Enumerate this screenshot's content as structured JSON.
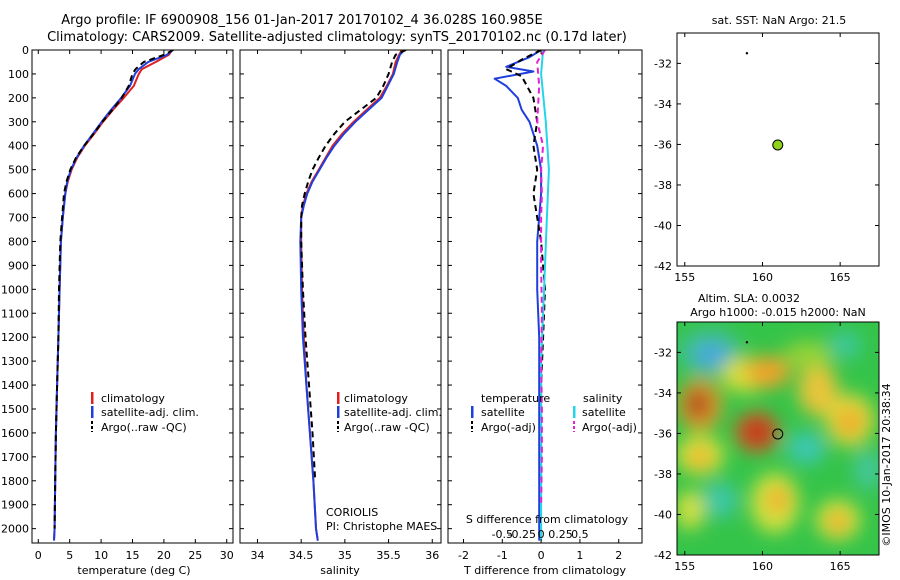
{
  "title_lines": [
    "Argo profile: IF 6900908_156 01-Jan-2017 20170102_4 36.028S 160.985E",
    "Climatology: CARS2009. Satellite-adjusted climatology: synTS_20170102.nc (0.17d later)"
  ],
  "depth_ticks": [
    0,
    100,
    200,
    300,
    400,
    500,
    600,
    700,
    800,
    900,
    1000,
    1100,
    1200,
    1300,
    1400,
    1500,
    1600,
    1700,
    1800,
    1900,
    2000
  ],
  "colors": {
    "climatology": "#e02020",
    "satellite": "#1f3fdd",
    "argo": "#000000",
    "sal_satellite": "#22d6e8",
    "sal_argo": "#e81fd6"
  },
  "temperature_panel": {
    "xlabel": "temperature (deg C)",
    "legend": [
      "climatology",
      "satellite-adj. clim.",
      "Argo(..raw -QC)"
    ]
  },
  "salinity_panel": {
    "xlabel": "salinity",
    "legend": [
      "climatology",
      "satellite-adj. clim.",
      "Argo(..raw -QC)"
    ],
    "notes": [
      "CORIOLIS",
      "PI: Christophe MAES"
    ]
  },
  "difference_panel": {
    "top_label": "S difference from climatology",
    "xlabel": "T difference from climatology",
    "legend_headers": [
      "temperature",
      "salinity"
    ],
    "legend_items": [
      "satellite",
      "Argo(-adj)",
      "satellite",
      "Argo(-adj)"
    ]
  },
  "sst_map": {
    "title": "sat. SST: NaN Argo: 21.5",
    "x_ticks": [
      155,
      160,
      165
    ],
    "y_ticks": [
      -32,
      -34,
      -36,
      -38,
      -40,
      -42
    ]
  },
  "sla_map": {
    "title_lines": [
      "Altim. SLA: 0.0032",
      "Argo h1000: -0.015 h2000: NaN"
    ],
    "x_ticks": [
      155,
      160,
      165
    ],
    "y_ticks": [
      -32,
      -34,
      -36,
      -38,
      -40,
      -42
    ],
    "credit": "©IMOS 10-Jan-2017 20:38:34"
  },
  "chart_data": [
    {
      "type": "line",
      "title": "",
      "xlabel": "temperature (deg C)",
      "ylabel": "",
      "xlim": [
        -1,
        31
      ],
      "ylim": [
        2060,
        0
      ],
      "x_ticks": [
        0,
        5,
        10,
        15,
        20,
        25,
        30
      ],
      "series": [
        {
          "name": "climatology",
          "color": "#e02020",
          "x": [
            21.3,
            20.8,
            18.7,
            16.5,
            16.0,
            15.2,
            13.6,
            11.9,
            10.3,
            8.9,
            7.4,
            6.2,
            5.3,
            4.7,
            4.3,
            3.9,
            3.6,
            3.4,
            3.2,
            3.0,
            2.8,
            2.7,
            2.6,
            2.5
          ],
          "y": [
            0,
            20,
            50,
            80,
            100,
            150,
            200,
            250,
            300,
            350,
            400,
            450,
            500,
            550,
            600,
            700,
            800,
            1000,
            1200,
            1400,
            1600,
            1800,
            2000,
            2050
          ]
        },
        {
          "name": "satellite-adj. clim.",
          "color": "#1f3fdd",
          "x": [
            21.4,
            20.5,
            17.5,
            16.0,
            15.4,
            14.6,
            13.2,
            11.6,
            10.1,
            8.7,
            7.3,
            6.1,
            5.2,
            4.6,
            4.3,
            3.9,
            3.6,
            3.4,
            3.2,
            3.0,
            2.8,
            2.7,
            2.6,
            2.5
          ],
          "y": [
            0,
            20,
            50,
            80,
            100,
            150,
            200,
            250,
            300,
            350,
            400,
            450,
            500,
            550,
            600,
            700,
            800,
            1000,
            1200,
            1400,
            1600,
            1800,
            2000,
            2050
          ]
        },
        {
          "name": "Argo(..raw -QC)",
          "color": "#000000",
          "x": [
            21.5,
            20.0,
            16.8,
            15.5,
            15.0,
            14.4,
            13.3,
            11.8,
            10.2,
            8.8,
            7.3,
            6.0,
            5.1,
            4.5,
            4.1,
            3.8,
            3.5,
            3.3,
            3.2,
            3.0,
            2.8,
            2.7,
            2.6
          ],
          "y": [
            0,
            20,
            50,
            80,
            100,
            150,
            200,
            250,
            300,
            350,
            400,
            450,
            500,
            550,
            600,
            700,
            800,
            1000,
            1200,
            1400,
            1600,
            1800,
            2000
          ]
        }
      ]
    },
    {
      "type": "line",
      "title": "",
      "xlabel": "salinity",
      "ylabel": "",
      "xlim": [
        33.8,
        36.1
      ],
      "ylim": [
        2060,
        0
      ],
      "x_ticks": [
        34,
        34.5,
        35,
        35.5,
        36
      ],
      "series": [
        {
          "name": "climatology",
          "color": "#e02020",
          "x": [
            35.65,
            35.62,
            35.58,
            35.55,
            35.48,
            35.4,
            35.25,
            35.1,
            34.97,
            34.86,
            34.78,
            34.7,
            34.62,
            34.56,
            34.52,
            34.5,
            34.5,
            34.51,
            34.53,
            34.56,
            34.6,
            34.64,
            34.67,
            34.69
          ],
          "y": [
            0,
            20,
            50,
            100,
            150,
            200,
            250,
            300,
            350,
            400,
            450,
            500,
            550,
            600,
            650,
            700,
            800,
            1000,
            1200,
            1400,
            1600,
            1800,
            2000,
            2050
          ]
        },
        {
          "name": "satellite-adj. clim.",
          "color": "#1f3fdd",
          "x": [
            35.68,
            35.63,
            35.6,
            35.56,
            35.49,
            35.42,
            35.27,
            35.12,
            34.99,
            34.88,
            34.79,
            34.71,
            34.63,
            34.57,
            34.53,
            34.5,
            34.49,
            34.5,
            34.52,
            34.56,
            34.6,
            34.64,
            34.67,
            34.69
          ],
          "y": [
            0,
            20,
            50,
            100,
            150,
            200,
            250,
            300,
            350,
            400,
            450,
            500,
            550,
            600,
            650,
            700,
            800,
            1000,
            1200,
            1400,
            1600,
            1800,
            2000,
            2050
          ]
        },
        {
          "name": "Argo(..raw -QC)",
          "color": "#000000",
          "x": [
            35.7,
            35.58,
            35.54,
            35.5,
            35.44,
            35.36,
            35.18,
            35.0,
            34.88,
            34.78,
            34.7,
            34.63,
            34.58,
            34.54,
            34.51,
            34.5,
            34.5,
            34.52,
            34.55,
            34.59,
            34.63,
            34.66
          ],
          "y": [
            0,
            20,
            50,
            100,
            150,
            200,
            250,
            300,
            350,
            400,
            450,
            500,
            550,
            600,
            650,
            700,
            800,
            1000,
            1200,
            1400,
            1600,
            1800
          ]
        }
      ]
    },
    {
      "type": "line",
      "title": "",
      "xlabel": "T difference from climatology",
      "x2label": "S difference from climatology",
      "ylabel": "",
      "xlim": [
        -2.4,
        2.6
      ],
      "ylim": [
        2060,
        0
      ],
      "x_ticks": [
        -2,
        -1,
        0,
        1,
        2
      ],
      "x2_ticks": [
        -0.5,
        -0.25,
        0,
        0.25,
        0.5
      ],
      "series": [
        {
          "name": "satellite (temperature)",
          "color": "#1f3fdd",
          "x": [
            0.0,
            -0.3,
            -0.9,
            -0.2,
            -1.2,
            -0.9,
            -0.6,
            -0.5,
            -0.3,
            -0.1,
            0.0,
            0.0,
            -0.05,
            -0.1,
            -0.1,
            -0.1,
            -0.05,
            -0.05,
            -0.05,
            -0.05,
            -0.05
          ],
          "y": [
            0,
            30,
            70,
            90,
            120,
            150,
            200,
            250,
            300,
            400,
            500,
            600,
            700,
            800,
            900,
            1000,
            1200,
            1400,
            1600,
            1800,
            2050
          ]
        },
        {
          "name": "Argo(-adj) (temperature)",
          "color": "#000000",
          "x": [
            0.0,
            -0.5,
            -0.9,
            -0.5,
            -0.2,
            -0.1,
            -0.2,
            -0.1,
            -0.2,
            -0.1,
            0.0,
            0.1,
            0.05,
            0.0,
            0.0,
            0.0
          ],
          "y": [
            0,
            40,
            80,
            110,
            200,
            300,
            400,
            500,
            600,
            700,
            800,
            1000,
            1200,
            1400,
            1600,
            1800
          ]
        },
        {
          "name": "satellite (salinity)",
          "color": "#22d6e8",
          "x": [
            0.05,
            0.0,
            0.12,
            0.2,
            0.15,
            0.1,
            0.05,
            0.0,
            0.0,
            0.0,
            0.0,
            0.0
          ],
          "y": [
            0,
            100,
            300,
            500,
            700,
            900,
            1100,
            1300,
            1500,
            1700,
            1900,
            2050
          ]
        },
        {
          "name": "Argo(-adj) (salinity)",
          "color": "#e81fd6",
          "x": [
            0.1,
            -0.1,
            -0.05,
            -0.1,
            0.05,
            0.0,
            0.02,
            0.0,
            0.0,
            0.02,
            0.0,
            0.02,
            0.02,
            0.0
          ],
          "y": [
            0,
            50,
            150,
            300,
            400,
            500,
            600,
            700,
            900,
            1100,
            1300,
            1500,
            1700,
            1900
          ]
        }
      ]
    },
    {
      "type": "scatter",
      "title": "sat. SST: NaN Argo: 21.5",
      "xlabel": "",
      "ylabel": "",
      "xlim": [
        154.5,
        167.5
      ],
      "ylim": [
        -42,
        -30.5
      ],
      "x_ticks": [
        155,
        160,
        165
      ],
      "y_ticks": [
        -32,
        -34,
        -36,
        -38,
        -40,
        -42
      ],
      "points": [
        {
          "lon": 160.985,
          "lat": -36.028,
          "color": "#8fd11b"
        },
        {
          "lon": 159.0,
          "lat": -31.5,
          "color": "#000000"
        }
      ]
    },
    {
      "type": "heatmap",
      "title": "Altim. SLA: 0.0032",
      "xlabel": "",
      "ylabel": "",
      "xlim": [
        154.5,
        167.5
      ],
      "ylim": [
        -42,
        -30.5
      ],
      "x_ticks": [
        155,
        160,
        165
      ],
      "y_ticks": [
        -32,
        -34,
        -36,
        -38,
        -40,
        -42
      ],
      "points": [
        {
          "lon": 160.985,
          "lat": -36.028,
          "color": "none"
        },
        {
          "lon": 159.0,
          "lat": -31.5,
          "color": "#000000"
        }
      ]
    }
  ]
}
